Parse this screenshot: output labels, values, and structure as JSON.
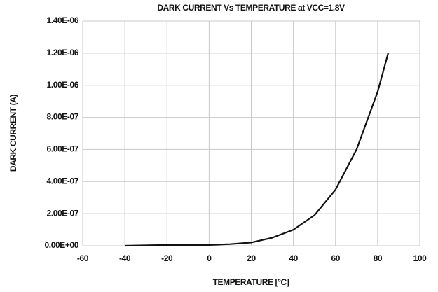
{
  "chart_data": {
    "type": "line",
    "title": "DARK CURRENT Vs TEMPERATURE at VCC=1.8V",
    "x_label": "TEMPERATURE [°C]",
    "y_label": "DARK CURRENT (A)",
    "series": [
      {
        "color": "#111111",
        "x": [
          -40,
          -20,
          0,
          10,
          20,
          30,
          40,
          50,
          60,
          70,
          80,
          85
        ],
        "values": [
          0,
          5e-09,
          5e-09,
          1e-08,
          2e-08,
          5e-08,
          1e-07,
          1.9e-07,
          3.5e-07,
          6e-07,
          9.6e-07,
          1.2e-06
        ]
      }
    ],
    "xlim": [
      -60,
      100
    ],
    "xticks": [
      -60,
      -40,
      -20,
      0,
      20,
      40,
      60,
      80,
      100
    ],
    "ylim": [
      0,
      1.4e-06
    ],
    "yticks": [
      {
        "value": 0,
        "label": "0.00E+00"
      },
      {
        "value": 2e-07,
        "label": "2.00E-07"
      },
      {
        "value": 4e-07,
        "label": "4.00E-07"
      },
      {
        "value": 6e-07,
        "label": "6.00E-07"
      },
      {
        "value": 8e-07,
        "label": "8.00E-07"
      },
      {
        "value": 1e-06,
        "label": "1.00E-06"
      },
      {
        "value": 1.2e-06,
        "label": "1.20E-06"
      },
      {
        "value": 1.4e-06,
        "label": "1.40E-06"
      }
    ],
    "grid": true
  }
}
